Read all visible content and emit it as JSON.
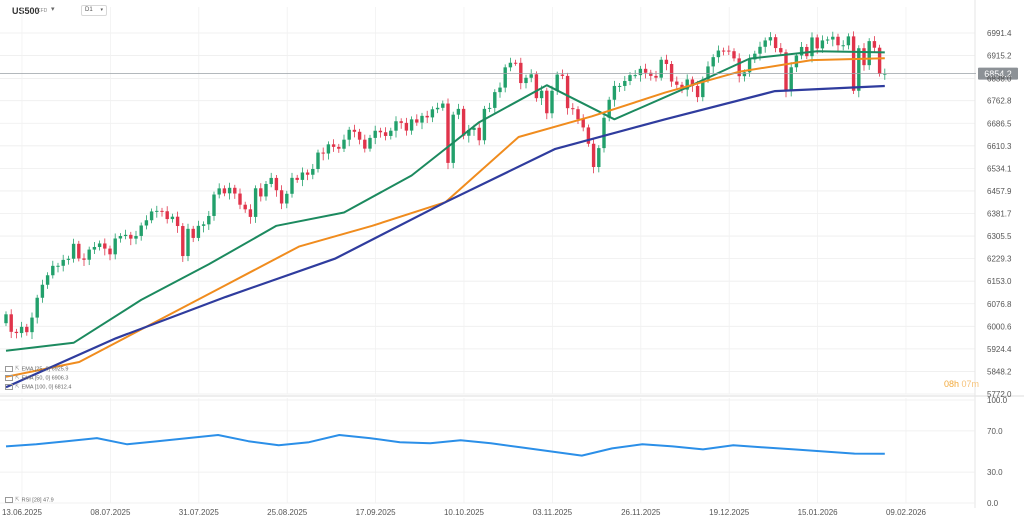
{
  "header": {
    "symbol": "US500",
    "symbol_type": "CFD",
    "timeframe": "D1"
  },
  "timer": {
    "hours": "08h",
    "minutes": "07m"
  },
  "current_price": "6854.2",
  "colors": {
    "bull": "#22a06b",
    "bear": "#e0344b",
    "ema25": "#1c8a5f",
    "ema50": "#f08c1e",
    "ema100": "#2f3c9e",
    "rsi": "#2b8fe8",
    "price_line": "#9aa0a6",
    "price_badge": "#8c9196"
  },
  "legends": {
    "ema25": "EMA [25, 0] 6925.9",
    "ema50": "EMA [50, 0] 6906.3",
    "ema100": "EMA [100, 0] 6812.4",
    "rsi": "RSI [28] 47.9"
  },
  "chart_data": [
    {
      "type": "candlestick",
      "title": "US500 D1",
      "x_tick_labels": [
        "13.06.2025",
        "08.07.2025",
        "31.07.2025",
        "25.08.2025",
        "17.09.2025",
        "10.10.2025",
        "03.11.2025",
        "26.11.2025",
        "19.12.2025",
        "15.01.2026",
        "09.02.2026"
      ],
      "x_tick_bar_index": [
        0,
        17,
        34,
        51,
        68,
        85,
        102,
        119,
        136,
        153,
        170
      ],
      "y_tick_labels": [
        "6991.4",
        "6915.2",
        "6838.0",
        "6762.8",
        "6686.5",
        "6610.3",
        "6534.1",
        "6457.9",
        "6381.7",
        "6305.5",
        "6229.3",
        "6153.0",
        "6076.8",
        "6000.6",
        "5924.4",
        "5848.2",
        "5772.0"
      ],
      "ylim": [
        5772.0,
        7040.0
      ],
      "series": [
        {
          "name": "US500 close",
          "values": [
            6041.2,
            5982.0,
            5977.9,
            5998.8,
            5980.9,
            6030.1,
            6097.1,
            6141.0,
            6173.1,
            6204.9,
            6205.1,
            6225.0,
            6228.9,
            6279.3,
            6229.9,
            6225.5,
            6259.8,
            6268.6,
            6280.5,
            6263.2,
            6243.8,
            6297.3,
            6305.6,
            6309.6,
            6296.8,
            6305.9,
            6341.2,
            6358.9,
            6388.6,
            6390.6,
            6389.3,
            6362.9,
            6370.9,
            6339.4,
            6238.0,
            6329.9,
            6299.2,
            6340.0,
            6345.1,
            6373.4,
            6445.8,
            6466.6,
            6449.8,
            6468.5,
            6449.1,
            6411.4,
            6395.8,
            6370.2,
            6466.9,
            6439.3,
            6481.4,
            6501.9,
            6460.3,
            6415.5,
            6448.3,
            6502.1,
            6495.2,
            6520.2,
            6512.6,
            6532.0,
            6587.5,
            6584.3,
            6615.3,
            6606.8,
            6600.5,
            6631.0,
            6664.4,
            6657.7,
            6631.0,
            6600.8,
            6637.1,
            6661.2,
            6656.1,
            6643.7,
            6661.4,
            6693.3,
            6687.8,
            6661.7,
            6699.7,
            6688.8,
            6711.5,
            6706.3,
            6733.7,
            6738.7,
            6753.1,
            6552.6,
            6715.5,
            6735.1,
            6644.3,
            6664.0,
            6671.3,
            6629.1,
            6735.1,
            6738.4,
            6791.7,
            6807.0,
            6875.4,
            6890.9,
            6890.6,
            6822.3,
            6840.2,
            6851.9,
            6771.3,
            6796.5,
            6720.3,
            6796.3,
            6850.9,
            6846.5,
            6737.5,
            6734.1,
            6700.0,
            6672.4,
            6617.3,
            6538.7,
            6602.6,
            6705.1,
            6765.9,
            6812.6,
            6812.6,
            6829.3,
            6849.1,
            6849.1,
            6870.4,
            6857.1,
            6846.5,
            6840.5,
            6901.0,
            6886.7,
            6827.4,
            6816.5,
            6800.2,
            6834.5,
            6812.6,
            6774.8,
            6834.5,
            6878.5,
            6909.8,
            6932.1,
            6932.0,
            6929.9,
            6905.7,
            6845.5,
            6858.5,
            6902.1,
            6921.5,
            6944.8,
            6966.3,
            6977.3,
            6940.5,
            6926.1,
            6796.2,
            6875.6,
            6915.6,
            6944.2,
            6913.1,
            6976.4,
            6939.4,
            6966.3,
            6969.4,
            6978.7,
            6950.0,
            6950.0,
            6980.0,
            6796.3,
            6940.0,
            6882.8,
            6964.0,
            6941.7,
            6854.2,
            6854.2
          ]
        }
      ]
    },
    {
      "type": "line",
      "title": "Moving averages",
      "series": [
        {
          "name": "EMA [25, 0]",
          "last": 6925.9,
          "key_points": [
            5918,
            5945,
            6090,
            6210,
            6340,
            6385,
            6510,
            6690,
            6815,
            6700,
            6800,
            6905,
            6930,
            6925.9
          ]
        },
        {
          "name": "EMA [50, 0]",
          "last": 6906.3,
          "key_points": [
            5830,
            5880,
            6010,
            6140,
            6270,
            6340,
            6420,
            6640,
            6710,
            6790,
            6860,
            6900,
            6906.3
          ]
        },
        {
          "name": "EMA [100, 0]",
          "last": 6812.4,
          "key_points": [
            5795,
            5960,
            6100,
            6230,
            6420,
            6600,
            6700,
            6795,
            6812.4
          ]
        }
      ]
    },
    {
      "type": "line",
      "title": "RSI [28]",
      "y_tick_labels": [
        "100.0",
        "70.0",
        "30.0",
        "0.0"
      ],
      "ylim": [
        0,
        100
      ],
      "series": [
        {
          "name": "RSI [28]",
          "last": 47.9,
          "key_points": [
            55,
            57,
            60,
            63,
            57,
            60,
            63,
            66,
            60,
            56,
            59,
            66,
            63,
            59,
            58,
            61,
            58,
            54,
            50,
            46,
            53,
            57,
            55,
            52,
            56,
            54,
            52,
            50,
            48,
            47.9
          ]
        }
      ]
    }
  ]
}
